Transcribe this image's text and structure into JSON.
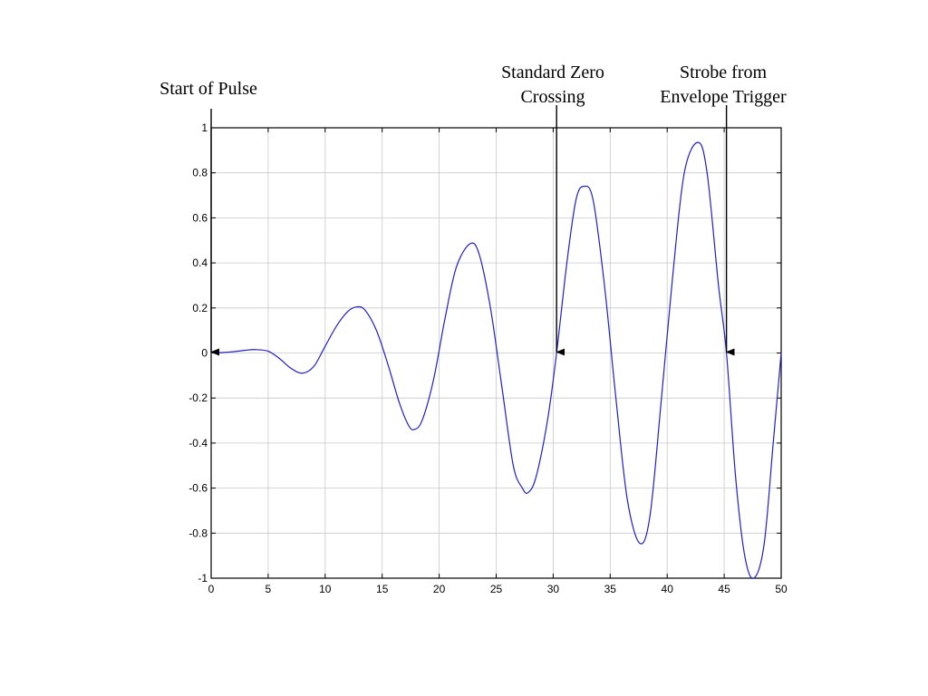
{
  "chart_data": {
    "type": "line",
    "title": "",
    "xlabel": "",
    "ylabel": "",
    "xlim": [
      0,
      50
    ],
    "ylim": [
      -1,
      1
    ],
    "grid": true,
    "x_ticks": [
      0,
      5,
      10,
      15,
      20,
      25,
      30,
      35,
      40,
      45,
      50
    ],
    "y_ticks": [
      -1,
      -0.8,
      -0.6,
      -0.4,
      -0.2,
      0,
      0.2,
      0.4,
      0.6,
      0.8,
      1
    ],
    "x_tick_labels": [
      "0",
      "5",
      "10",
      "15",
      "20",
      "25",
      "30",
      "35",
      "40",
      "45",
      "50"
    ],
    "y_tick_labels": [
      "-1",
      "-0.8",
      "-0.6",
      "-0.4",
      "-0.2",
      "0",
      "0.2",
      "0.4",
      "0.6",
      "0.8",
      "1"
    ],
    "series": [
      {
        "name": "",
        "color": "#1f1fcc",
        "points": [
          [
            0,
            0
          ],
          [
            1,
            0.002
          ],
          [
            2,
            0.006
          ],
          [
            3,
            0.012
          ],
          [
            3.8,
            0.015
          ],
          [
            5,
            0.008
          ],
          [
            6,
            -0.025
          ],
          [
            7,
            -0.068
          ],
          [
            8,
            -0.09
          ],
          [
            9,
            -0.06
          ],
          [
            10,
            0.03
          ],
          [
            11,
            0.12
          ],
          [
            12,
            0.185
          ],
          [
            12.8,
            0.205
          ],
          [
            13.5,
            0.19
          ],
          [
            14.5,
            0.1
          ],
          [
            15.5,
            -0.05
          ],
          [
            16.5,
            -0.22
          ],
          [
            17.3,
            -0.32
          ],
          [
            17.8,
            -0.34
          ],
          [
            18.5,
            -0.3
          ],
          [
            19.5,
            -0.12
          ],
          [
            20.5,
            0.15
          ],
          [
            21.5,
            0.38
          ],
          [
            22.7,
            0.485
          ],
          [
            23.5,
            0.44
          ],
          [
            24.5,
            0.2
          ],
          [
            25.5,
            -0.15
          ],
          [
            26.5,
            -0.5
          ],
          [
            27.3,
            -0.6
          ],
          [
            27.8,
            -0.62
          ],
          [
            28.5,
            -0.55
          ],
          [
            29.5,
            -0.3
          ],
          [
            30.3,
            0
          ],
          [
            31.2,
            0.4
          ],
          [
            32.0,
            0.68
          ],
          [
            32.7,
            0.74
          ],
          [
            33.5,
            0.68
          ],
          [
            34.5,
            0.3
          ],
          [
            35.5,
            -0.2
          ],
          [
            36.5,
            -0.65
          ],
          [
            37.6,
            -0.845
          ],
          [
            38.5,
            -0.72
          ],
          [
            39.5,
            -0.2
          ],
          [
            40.5,
            0.35
          ],
          [
            41.5,
            0.8
          ],
          [
            42.7,
            0.935
          ],
          [
            43.5,
            0.8
          ],
          [
            44.5,
            0.3
          ],
          [
            45.2,
            0
          ],
          [
            46.0,
            -0.55
          ],
          [
            46.8,
            -0.9
          ],
          [
            47.6,
            -1.0
          ],
          [
            48.5,
            -0.85
          ],
          [
            49.3,
            -0.4
          ],
          [
            50,
            0
          ]
        ]
      }
    ],
    "annotations": [
      {
        "lines": [
          "Start of Pulse"
        ],
        "x": 0,
        "y": 0
      },
      {
        "lines": [
          "Standard Zero",
          "Crossing"
        ],
        "x": 30.3,
        "y": 0
      },
      {
        "lines": [
          "Strobe from",
          "Envelope Trigger"
        ],
        "x": 45.2,
        "y": 0
      }
    ]
  }
}
